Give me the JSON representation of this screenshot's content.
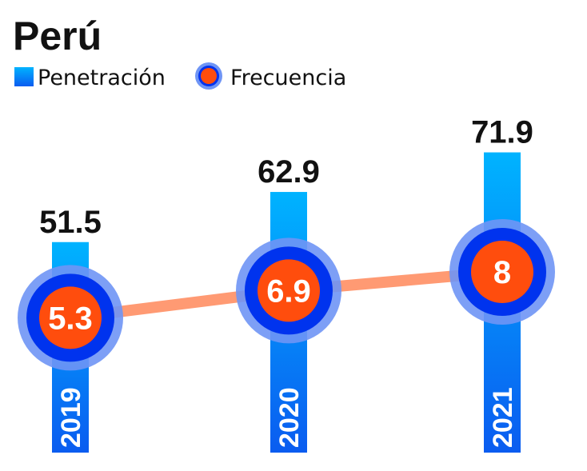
{
  "chart_data": {
    "type": "bar",
    "title": "Perú",
    "categories": [
      "2019",
      "2020",
      "2021"
    ],
    "series": [
      {
        "name": "Penetración",
        "type": "bar",
        "values": [
          51.5,
          62.9,
          71.9
        ]
      },
      {
        "name": "Frecuencia",
        "type": "line",
        "values": [
          5.3,
          6.9,
          8
        ]
      }
    ],
    "value_labels": {
      "penetracion": [
        "51.5",
        "62.9",
        "71.9"
      ],
      "frecuencia": [
        "5.3",
        "6.9",
        "8"
      ]
    },
    "legend": {
      "position": "top-left",
      "items": [
        "Penetración",
        "Frecuencia"
      ]
    },
    "grid": false,
    "colors": {
      "bar_top": "#00b3ff",
      "bar_bottom": "#0a5cf0",
      "marker_fill": "#ff4d0d",
      "marker_ring": "#0033ee",
      "marker_halo": "#6f95f5",
      "line": "#ff9a73",
      "text_dark": "#111111",
      "text_light": "#ffffff"
    }
  }
}
